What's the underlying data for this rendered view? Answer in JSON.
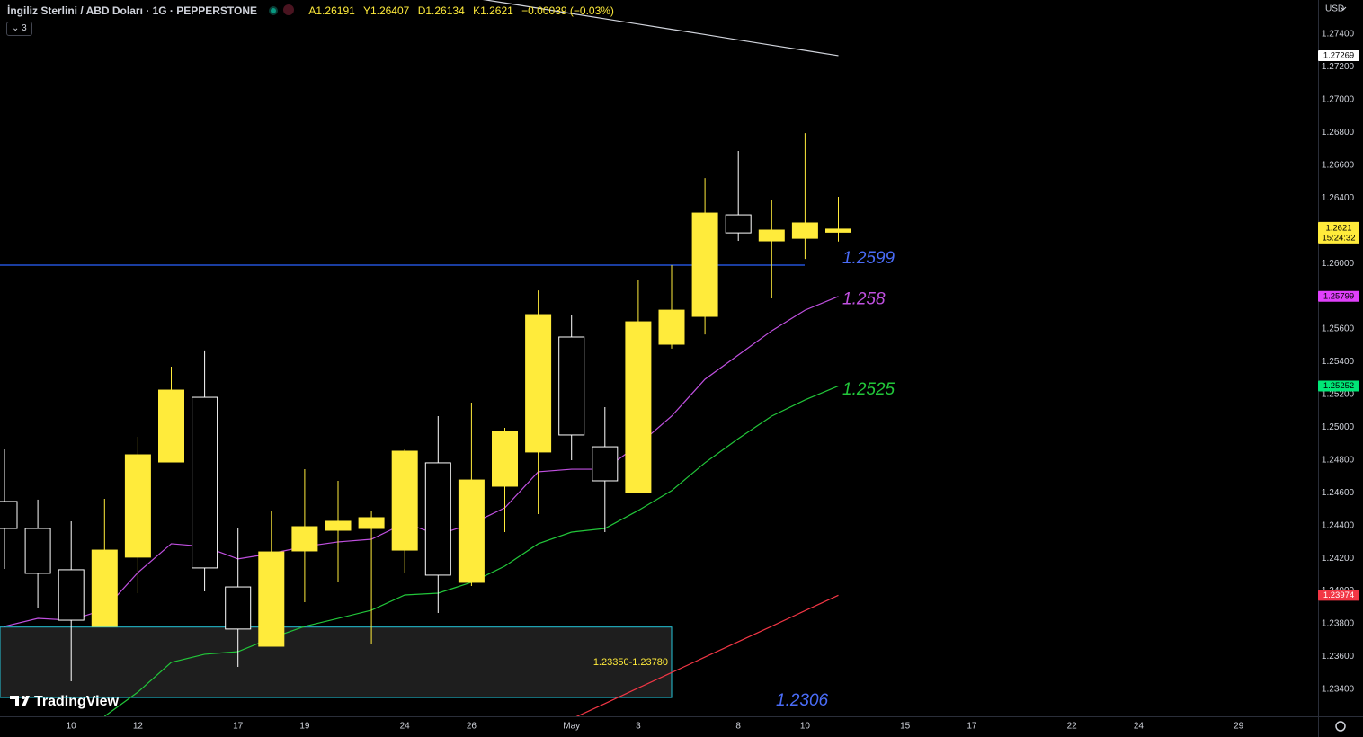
{
  "chart_data": {
    "type": "candlestick",
    "title": "İngiliz Sterlini / ABD Doları · 1G · PEPPERSTONE",
    "ohlc_labels": [
      "A",
      "Y",
      "D",
      "K"
    ],
    "change": "−0.00039",
    "change_percent": "(−0.03%)",
    "indicator_count": 3,
    "currency": "USD",
    "countdown": "15:24:32",
    "logo": "TradingView",
    "categories": [
      null,
      null,
      "10",
      null,
      "12",
      null,
      null,
      "17",
      null,
      "19",
      null,
      null,
      "24",
      null,
      "26",
      null,
      null,
      "May",
      null,
      "3",
      null,
      null,
      "8",
      null,
      "10",
      null,
      null,
      "15",
      null,
      "17",
      null,
      null,
      "22",
      null,
      "24",
      null,
      null,
      "29"
    ],
    "open": [
      1.24547,
      1.24382,
      1.2413,
      1.23784,
      1.24207,
      1.24788,
      1.25183,
      1.24025,
      1.23663,
      1.24245,
      1.24371,
      1.24382,
      1.2425,
      1.24783,
      1.24053,
      1.2464,
      1.24849,
      1.25551,
      1.24881,
      1.24602,
      1.25507,
      1.25677,
      1.26297,
      1.26138,
      1.26154,
      1.26191,
      null,
      null,
      null,
      null,
      null,
      null,
      null,
      null,
      null,
      null,
      null,
      null
    ],
    "high": [
      1.24865,
      1.24558,
      1.24426,
      1.24563,
      1.24942,
      1.2537,
      1.25469,
      1.24382,
      1.24492,
      1.24744,
      1.24673,
      1.24492,
      1.24865,
      1.25068,
      1.2515,
      1.24997,
      1.25836,
      1.25688,
      1.25123,
      1.25897,
      1.2599,
      1.26522,
      1.26687,
      1.2639,
      1.26796,
      1.26407,
      null,
      null,
      null,
      null,
      null,
      null,
      null,
      null,
      null,
      null,
      null,
      null
    ],
    "low": [
      1.24135,
      1.23899,
      1.23449,
      1.23784,
      1.23987,
      1.24788,
      1.23998,
      1.23537,
      1.23663,
      1.23932,
      1.24053,
      1.23674,
      1.24108,
      1.23866,
      1.24031,
      1.2436,
      1.2447,
      1.24799,
      1.2436,
      1.24602,
      1.2548,
      1.25567,
      1.26138,
      1.25787,
      1.26028,
      1.26134,
      null,
      null,
      null,
      null,
      null,
      null,
      null,
      null,
      null,
      null,
      null,
      null
    ],
    "close": [
      1.24382,
      1.24108,
      1.23822,
      1.2425,
      1.24832,
      1.25227,
      1.24141,
      1.23768,
      1.24239,
      1.24393,
      1.24426,
      1.24448,
      1.24854,
      1.24097,
      1.24678,
      1.24975,
      1.25688,
      1.24953,
      1.24673,
      1.25644,
      1.25715,
      1.26308,
      1.26187,
      1.26204,
      1.26248,
      1.2621,
      null,
      null,
      null,
      null,
      null,
      null,
      null,
      null,
      null,
      null,
      null,
      null
    ],
    "up_color": "#ffeb3b",
    "down_color": "#ffffff",
    "series": [
      {
        "color": "#c050e0",
        "box_color": "#e040fb",
        "label": 1.258,
        "values": [
          1.23784,
          1.23833,
          1.23822,
          1.23888,
          1.24113,
          1.24289,
          1.24272,
          1.24196,
          1.24229,
          1.24272,
          1.243,
          1.24316,
          1.24415,
          1.24344,
          1.2441,
          1.24508,
          1.24728,
          1.24744,
          1.24744,
          1.24892,
          1.25068,
          1.25293,
          1.25441,
          1.25589,
          1.25715,
          1.25799,
          null,
          null,
          null,
          null,
          null,
          null,
          null,
          null,
          null,
          null,
          null,
          null
        ]
      },
      {
        "color": "#22c63a",
        "box_color": "#00e676",
        "label": 1.2525,
        "values": [
          null,
          null,
          null,
          1.23235,
          1.23383,
          1.23565,
          1.23614,
          1.2363,
          1.23713,
          1.23784,
          1.23833,
          1.23883,
          1.23976,
          1.23987,
          1.24053,
          1.24152,
          1.24289,
          1.2436,
          1.24382,
          1.24492,
          1.24613,
          1.24783,
          1.24931,
          1.25068,
          1.25167,
          1.25252,
          null,
          null,
          null,
          null,
          null,
          null,
          null,
          null,
          null,
          null,
          null,
          null
        ]
      },
      {
        "color": "#d1d4dc",
        "box_color": "#ffffff",
        "values": [
          null,
          null,
          null,
          null,
          null,
          null,
          null,
          null,
          null,
          null,
          null,
          null,
          null,
          null,
          1.27623,
          1.27591,
          1.27559,
          1.27526,
          1.27494,
          1.27462,
          1.2743,
          1.27398,
          1.27365,
          1.27333,
          1.27301,
          1.27269,
          null,
          null,
          null,
          null,
          null,
          null,
          null,
          null,
          null,
          null,
          null,
          null
        ]
      },
      {
        "color": "#f23645",
        "box_color": "#f23645",
        "values": [
          null,
          null,
          null,
          null,
          null,
          null,
          null,
          null,
          null,
          null,
          null,
          null,
          null,
          null,
          null,
          null,
          null,
          1.23219,
          1.23313,
          1.23408,
          1.23502,
          1.23597,
          1.23691,
          1.23785,
          1.2388,
          1.23974,
          null,
          null,
          null,
          null,
          null,
          null,
          null,
          null,
          null,
          null,
          null,
          null
        ]
      }
    ],
    "hlines": [
      {
        "value": 1.2599,
        "color": "#2962ff"
      },
      {
        "value": 1.2306,
        "color": "#2962ff"
      }
    ],
    "zone": {
      "low": 1.2335,
      "high": 1.2378,
      "label": "1.23350-1.23780",
      "color": "#26c6da"
    },
    "ylim": [
      1.23235,
      1.27609
    ],
    "yticks": [
      {
        "value": 1.274,
        "label": "1.27400"
      },
      {
        "value": 1.272,
        "label": "1.27200"
      },
      {
        "value": 1.27,
        "label": "1.27000"
      },
      {
        "value": 1.268,
        "label": "1.26800"
      },
      {
        "value": 1.266,
        "label": "1.26600"
      },
      {
        "value": 1.264,
        "label": "1.26400"
      },
      {
        "value": 1.262,
        "label": "1.26200"
      },
      {
        "value": 1.26,
        "label": "1.26000"
      },
      {
        "value": 1.258,
        "label": "1.25800"
      },
      {
        "value": 1.256,
        "label": "1.25600"
      },
      {
        "value": 1.254,
        "label": "1.25400"
      },
      {
        "value": 1.252,
        "label": "1.25200"
      },
      {
        "value": 1.25,
        "label": "1.25000"
      },
      {
        "value": 1.248,
        "label": "1.24800"
      },
      {
        "value": 1.246,
        "label": "1.24600"
      },
      {
        "value": 1.244,
        "label": "1.24400"
      },
      {
        "value": 1.242,
        "label": "1.24200"
      },
      {
        "value": 1.24,
        "label": "1.24000"
      },
      {
        "value": 1.238,
        "label": "1.23800"
      },
      {
        "value": 1.236,
        "label": "1.23600"
      },
      {
        "value": 1.234,
        "label": "1.23400"
      }
    ],
    "grid": false
  }
}
